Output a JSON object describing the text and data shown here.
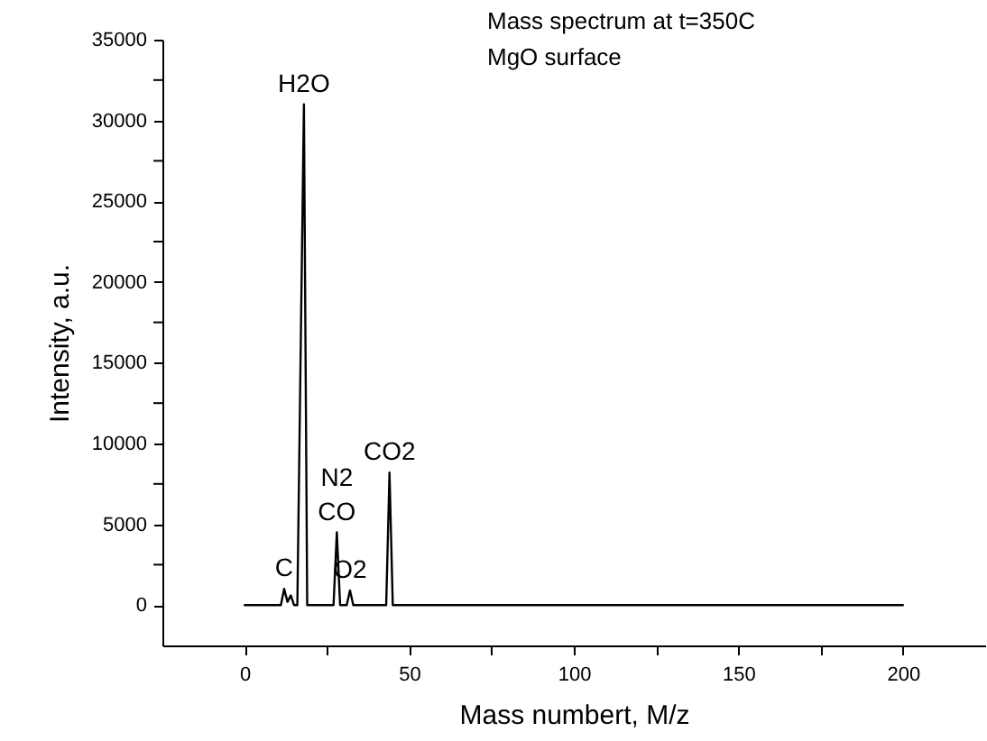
{
  "chart_data": {
    "type": "line",
    "title": "Mass spectrum at t=350C",
    "subtitle": "MgO surface",
    "xlabel": "Mass numbert, M/z",
    "ylabel": "Intensity, a.u.",
    "x": [
      0,
      10,
      11,
      12,
      13,
      14,
      15,
      16,
      18,
      19,
      27,
      28,
      29,
      31,
      32,
      33,
      43,
      44,
      45,
      200
    ],
    "series": [
      {
        "color": "#000000",
        "values": [
          0,
          0,
          0,
          1000,
          200,
          600,
          0,
          0,
          31000,
          0,
          0,
          4500,
          0,
          0,
          900,
          0,
          0,
          8200,
          0,
          0
        ]
      }
    ],
    "xlim": [
      -25,
      225
    ],
    "ylim": [
      -2500,
      35000
    ],
    "xticks": [
      0,
      {
        "value": 25,
        "label": null
      },
      50,
      {
        "value": 75,
        "label": null
      },
      100,
      {
        "value": 125,
        "label": null
      },
      150,
      {
        "value": 175,
        "label": null
      },
      200
    ],
    "yticks": [
      0,
      {
        "value": 2500,
        "label": null
      },
      5000,
      {
        "value": 7500,
        "label": null
      },
      10000,
      {
        "value": 12500,
        "label": null
      },
      15000,
      {
        "value": 17500,
        "label": null
      },
      20000,
      {
        "value": 22500,
        "label": null
      },
      25000,
      {
        "value": 27500,
        "label": null
      },
      30000,
      {
        "value": 32500,
        "label": null
      },
      35000
    ],
    "annotations": [
      {
        "text": "C",
        "x": 12,
        "y": 1000
      },
      {
        "text": "H2O",
        "x": 18,
        "y": 31000
      },
      {
        "text": "CO",
        "x": 28,
        "y": 4500
      },
      {
        "text": "N2",
        "x": 28,
        "y": 4500
      },
      {
        "text": "O2",
        "x": 32,
        "y": 900
      },
      {
        "text": "CO2",
        "x": 44,
        "y": 8200
      }
    ],
    "grid": false,
    "marker": "none",
    "line_style": "solid"
  }
}
